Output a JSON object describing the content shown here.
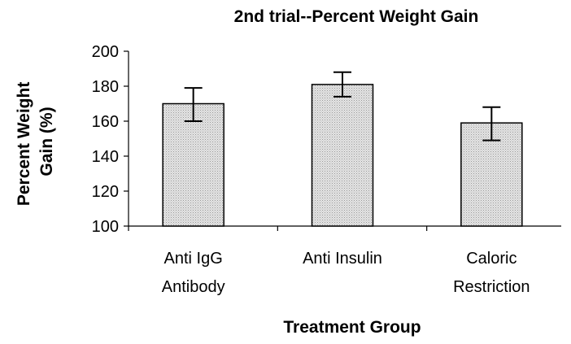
{
  "chart_data": {
    "type": "bar",
    "title": "2nd trial--Percent Weight Gain",
    "xlabel": "Treatment Group",
    "ylabel_lines": [
      "Percent Weight",
      "Gain (%)"
    ],
    "categories": [
      [
        "Anti IgG",
        "Antibody"
      ],
      [
        "Anti Insulin"
      ],
      [
        "Caloric",
        "Restriction"
      ]
    ],
    "values": [
      170,
      181,
      159
    ],
    "error_bars": [
      {
        "low": 160,
        "high": 179
      },
      {
        "low": 174,
        "high": 188
      },
      {
        "low": 149,
        "high": 168
      }
    ],
    "ylim": [
      100,
      200
    ],
    "yticks": [
      100,
      120,
      140,
      160,
      180,
      200
    ],
    "grid": false,
    "bar_fill": "#d9d9d9",
    "bar_stroke": "#000000"
  }
}
